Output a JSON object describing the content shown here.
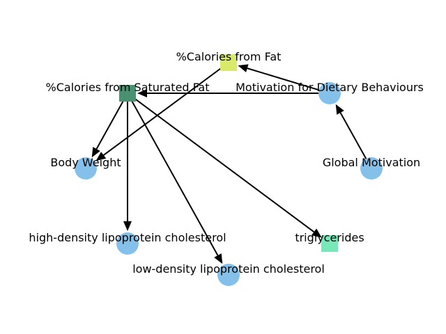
{
  "diagram": {
    "nodes": [
      {
        "id": "calories_fat",
        "label": "%Calories from Fat",
        "shape": "square",
        "color": "#d9ea6a"
      },
      {
        "id": "calories_sat_fat",
        "label": "%Calories from Saturated Fat",
        "shape": "square",
        "color": "#4a9172"
      },
      {
        "id": "motivation_dietary",
        "label": "Motivation for Dietary Behaviours",
        "shape": "circle",
        "color": "#85c0ea"
      },
      {
        "id": "global_motivation",
        "label": "Global Motivation",
        "shape": "circle",
        "color": "#85c0ea"
      },
      {
        "id": "body_weight",
        "label": "Body Weight",
        "shape": "circle",
        "color": "#85c0ea"
      },
      {
        "id": "hdl_cholesterol",
        "label": "high-density lipoprotein cholesterol",
        "shape": "circle",
        "color": "#85c0ea"
      },
      {
        "id": "triglycerides",
        "label": "triglycerides",
        "shape": "square",
        "color": "#78e8b8"
      },
      {
        "id": "ldl_cholesterol",
        "label": "low-density lipoprotein cholesterol",
        "shape": "circle",
        "color": "#85c0ea"
      }
    ],
    "edges": [
      {
        "from": "global_motivation",
        "to": "motivation_dietary"
      },
      {
        "from": "motivation_dietary",
        "to": "calories_fat"
      },
      {
        "from": "motivation_dietary",
        "to": "calories_sat_fat"
      },
      {
        "from": "calories_fat",
        "to": "body_weight"
      },
      {
        "from": "calories_sat_fat",
        "to": "body_weight"
      },
      {
        "from": "calories_sat_fat",
        "to": "hdl_cholesterol"
      },
      {
        "from": "calories_sat_fat",
        "to": "ldl_cholesterol"
      },
      {
        "from": "calories_sat_fat",
        "to": "triglycerides"
      }
    ]
  }
}
